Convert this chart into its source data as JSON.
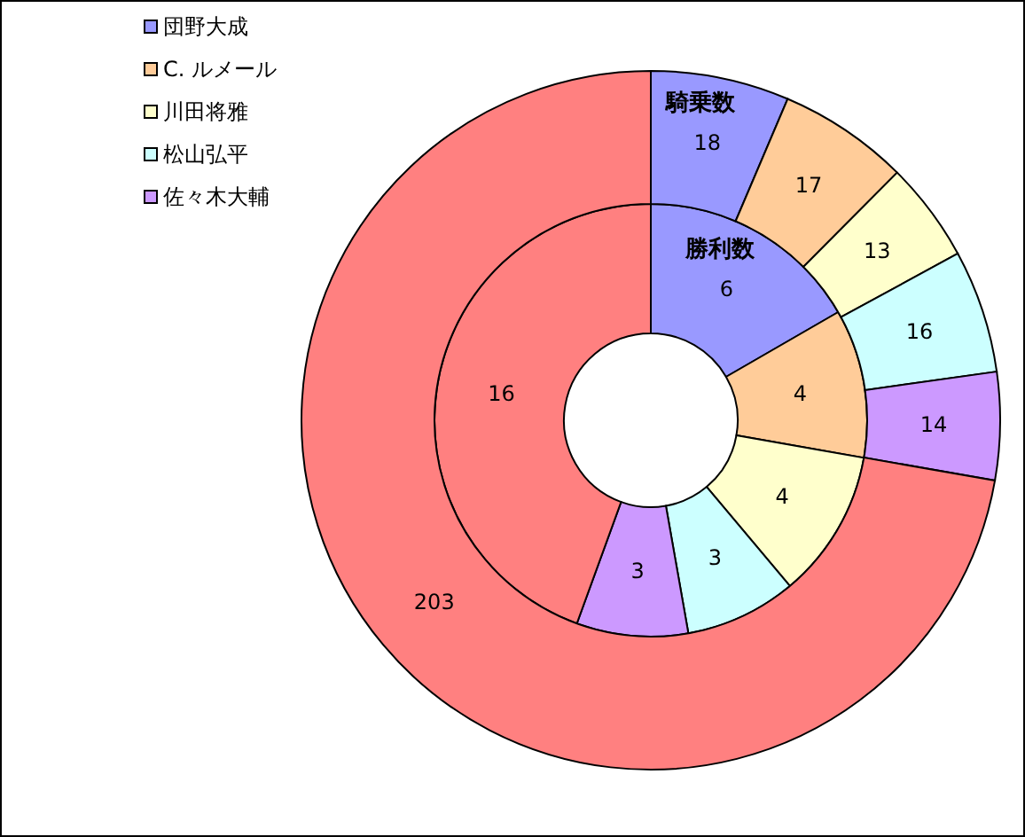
{
  "chart_data": {
    "type": "donut",
    "categories": [
      "団野大成",
      "C. ルメール",
      "川田将雅",
      "松山弘平",
      "佐々木大輔",
      null
    ],
    "colors": [
      "#9999ff",
      "#ffcc99",
      "#ffffcc",
      "#ccffff",
      "#cc99ff",
      "#ff8080"
    ],
    "series": [
      {
        "name": "勝利数",
        "values": [
          6,
          4,
          4,
          3,
          3,
          16
        ]
      },
      {
        "name": "騎乗数",
        "values": [
          18,
          17,
          13,
          16,
          14,
          203
        ]
      }
    ],
    "data_labels": true,
    "legend": "top left"
  }
}
